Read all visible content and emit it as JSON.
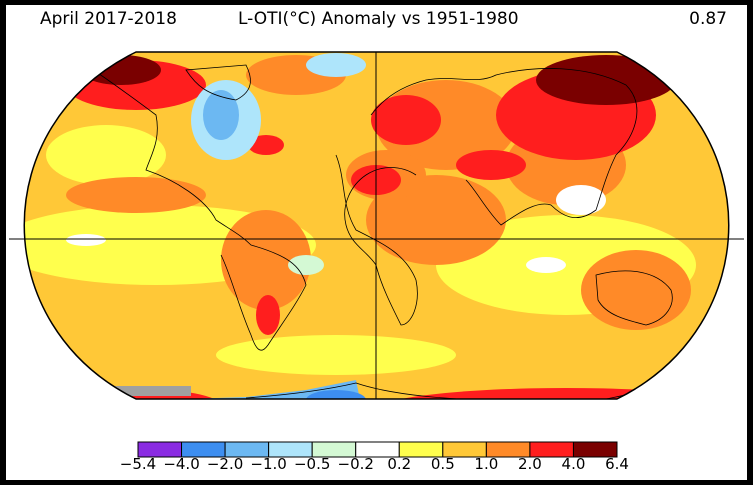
{
  "header": {
    "period": "April 2017-2018",
    "title": "L-OTI(°C) Anomaly vs 1951-1980",
    "global_mean": "0.87"
  },
  "colorbar": {
    "ticks": [
      "−5.4",
      "−4.0",
      "−2.0",
      "−1.0",
      "−0.5",
      "−0.2",
      "0.2",
      "0.5",
      "1.0",
      "2.0",
      "4.0",
      "6.4"
    ],
    "colors": [
      "#8a2be2",
      "#3d8ef0",
      "#6cb8f2",
      "#aee5fb",
      "#d4f9d4",
      "#ffffff",
      "#ffff4d",
      "#ffc837",
      "#ff8a28",
      "#ff1e1e",
      "#7a0000"
    ]
  },
  "palette": {
    "land_outline": "#000000",
    "grey_missing": "#a0a0a0"
  }
}
